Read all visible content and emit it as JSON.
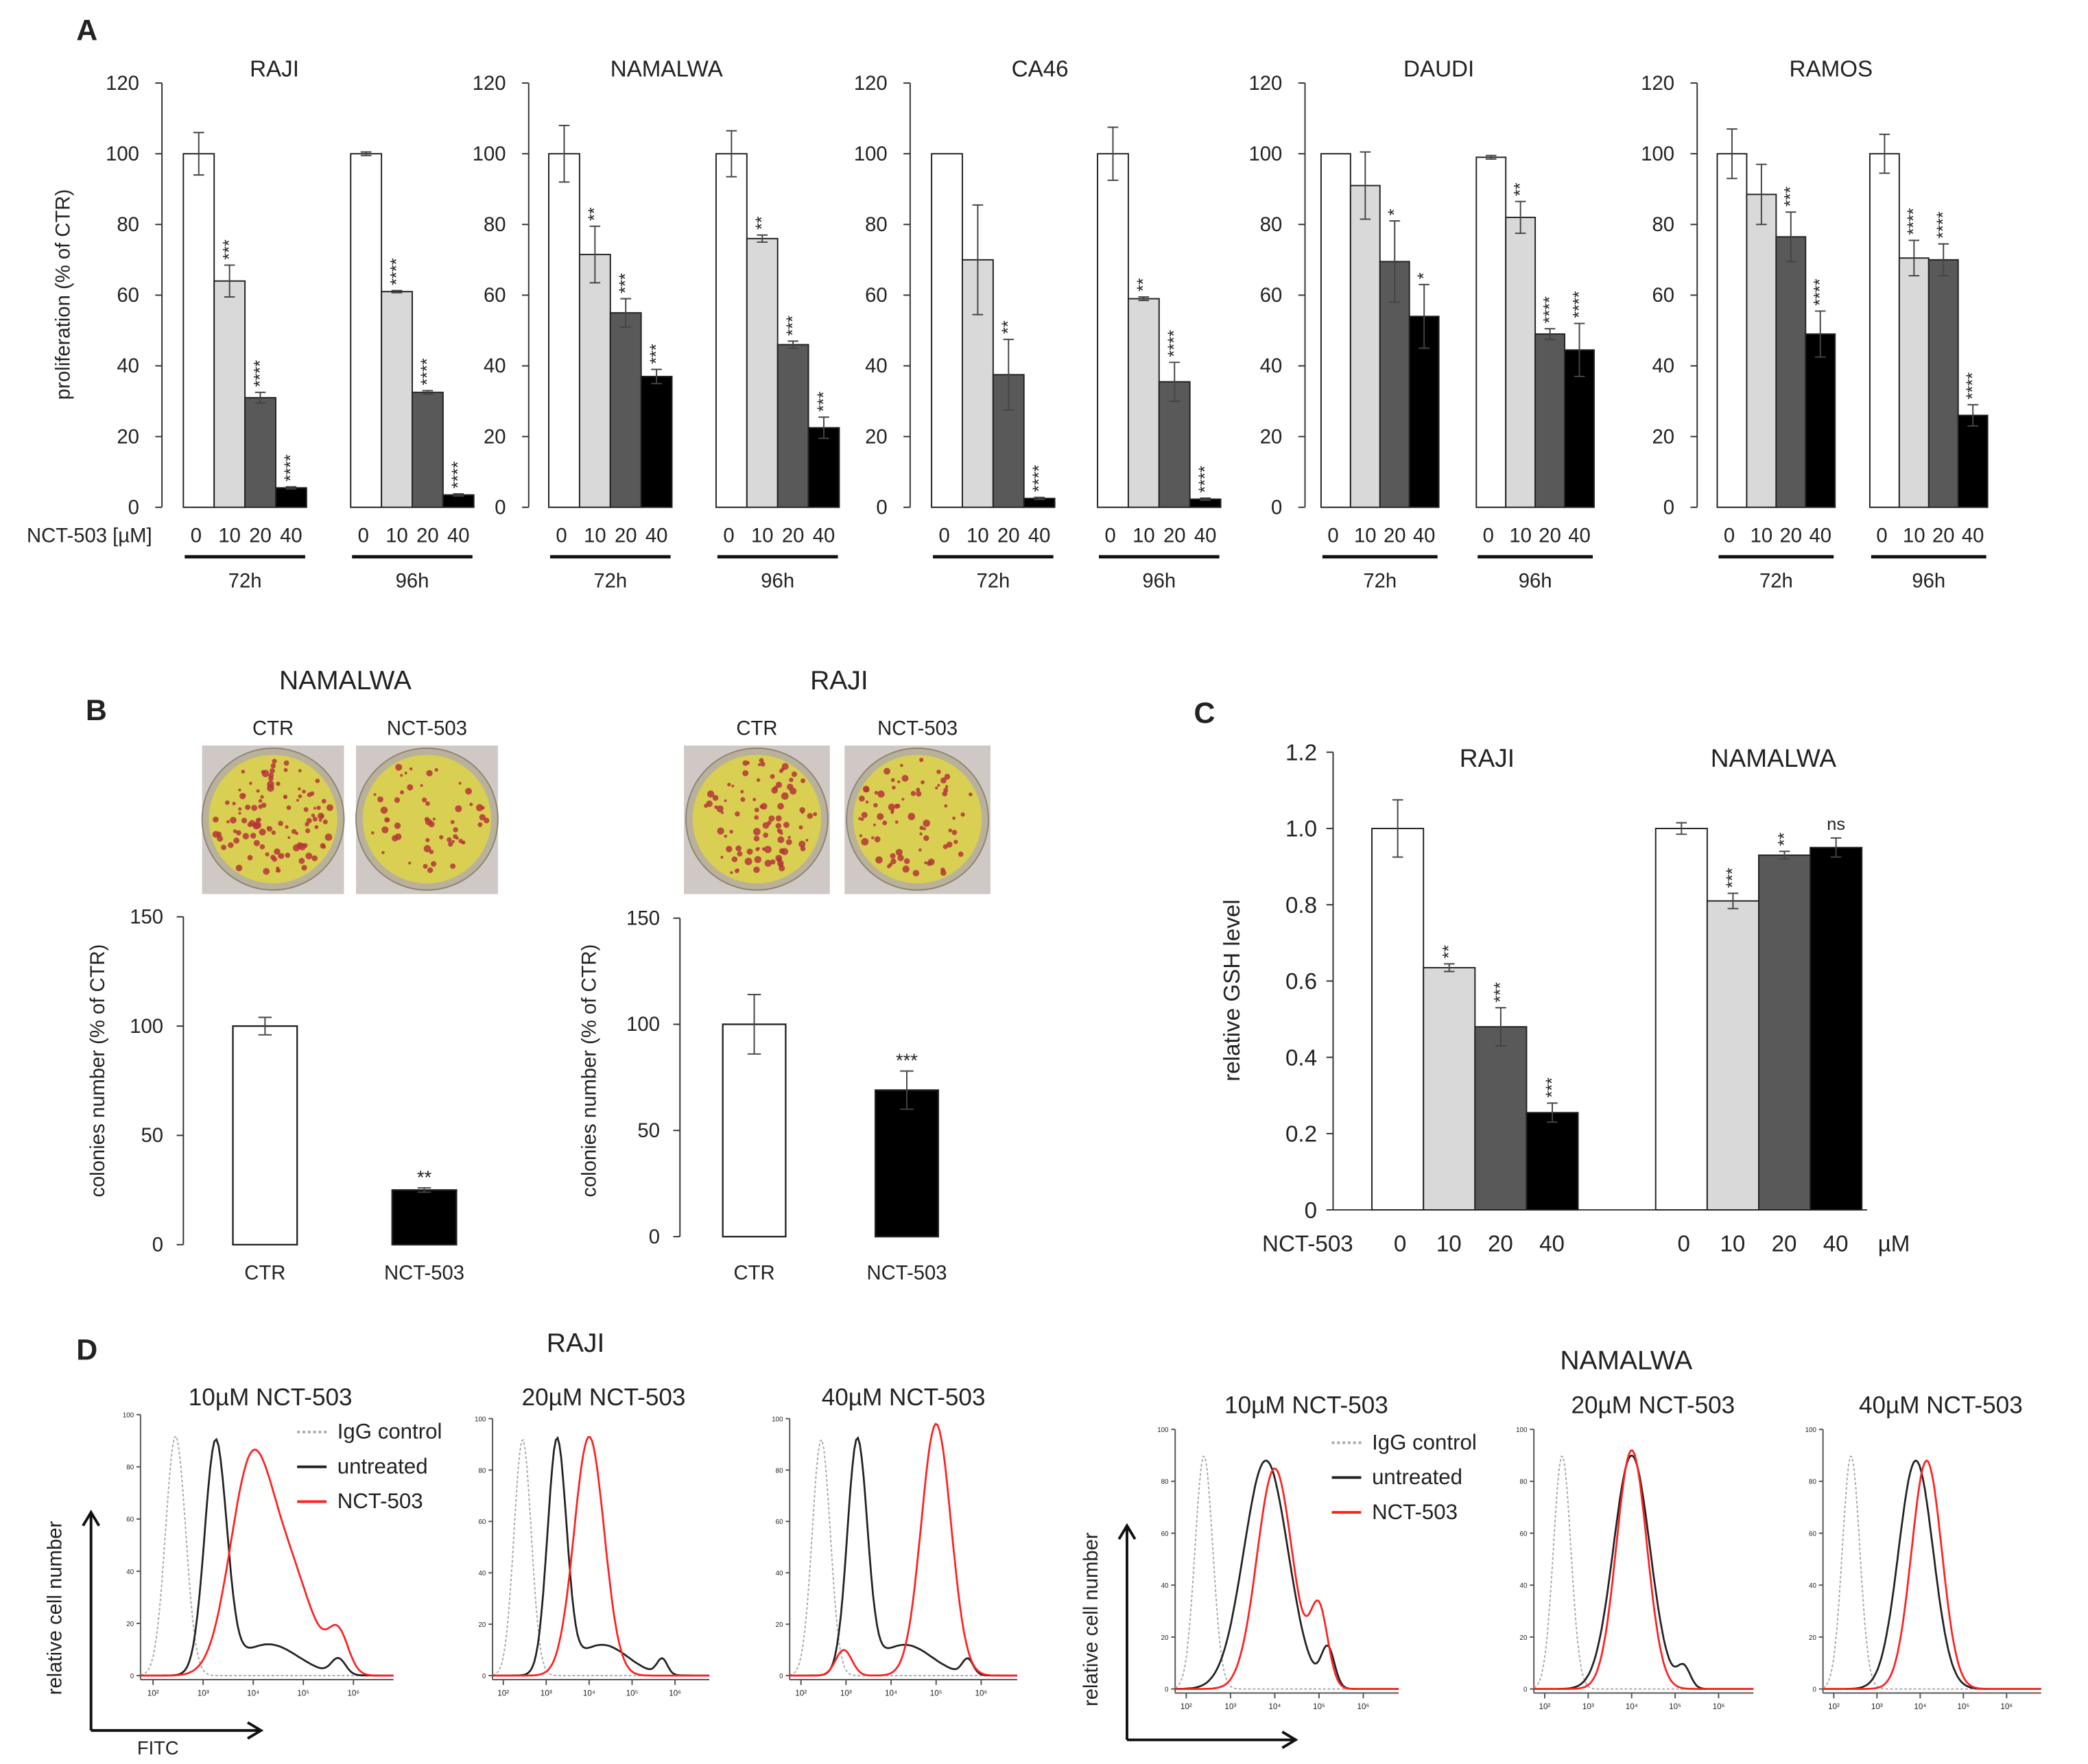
{
  "panel_labels": {
    "a": "A",
    "b": "B",
    "c": "C",
    "d": "D"
  },
  "chart_data": [
    {
      "panel": "A",
      "type": "bar",
      "ylabel": "proliferation (% of CTR)",
      "xlabel": "NCT-503 [µM]",
      "ylim": [
        0,
        120
      ],
      "yticks": [
        "0",
        "20",
        "40",
        "60",
        "80",
        "100",
        "120"
      ],
      "dose_labels": [
        "0",
        "10",
        "20",
        "40"
      ],
      "colors": [
        "#ffffff",
        "#d9d9d9",
        "#595959",
        "#000000"
      ],
      "cell_lines": [
        {
          "title": "RAJI",
          "groups": [
            {
              "time": "72h",
              "values": [
                100,
                64,
                31,
                5.5
              ],
              "errors": [
                6,
                4.5,
                1.5,
                0.3
              ],
              "sig": [
                "",
                "***",
                "****",
                "****"
              ]
            },
            {
              "time": "96h",
              "values": [
                100,
                61,
                32.5,
                3.5
              ],
              "errors": [
                0.5,
                0.3,
                0.5,
                0.3
              ],
              "sig": [
                "",
                "****",
                "****",
                "****"
              ]
            }
          ]
        },
        {
          "title": "NAMALWA",
          "groups": [
            {
              "time": "72h",
              "values": [
                100,
                71.5,
                55,
                37
              ],
              "errors": [
                8,
                8,
                4,
                2
              ],
              "sig": [
                "",
                "**",
                "***",
                "***"
              ]
            },
            {
              "time": "96h",
              "values": [
                100,
                76,
                46,
                22.5
              ],
              "errors": [
                6.5,
                1,
                1,
                3
              ],
              "sig": [
                "",
                "**",
                "***",
                "***"
              ]
            }
          ]
        },
        {
          "title": "CA46",
          "groups": [
            {
              "time": "72h",
              "values": [
                100,
                70,
                37.5,
                2.5
              ],
              "errors": [
                0,
                15.5,
                10,
                0.3
              ],
              "sig": [
                "",
                "",
                "**",
                "****"
              ]
            },
            {
              "time": "96h",
              "values": [
                100,
                59,
                35.5,
                2.3
              ],
              "errors": [
                7.5,
                0.5,
                5.5,
                0.3
              ],
              "sig": [
                "",
                "**",
                "****",
                "****"
              ]
            }
          ]
        },
        {
          "title": "DAUDI",
          "groups": [
            {
              "time": "72h",
              "values": [
                100,
                91,
                69.5,
                54
              ],
              "errors": [
                0,
                9.5,
                11.5,
                9
              ],
              "sig": [
                "",
                "",
                "*",
                "*"
              ]
            },
            {
              "time": "96h",
              "values": [
                99,
                82,
                49,
                44.5
              ],
              "errors": [
                0.5,
                4.5,
                1.5,
                7.5
              ],
              "sig": [
                "",
                "**",
                "****",
                "****"
              ]
            }
          ]
        },
        {
          "title": "RAMOS",
          "groups": [
            {
              "time": "72h",
              "values": [
                100,
                88.5,
                76.5,
                49
              ],
              "errors": [
                7,
                8.5,
                7,
                6.5
              ],
              "sig": [
                "",
                "",
                "***",
                "****"
              ]
            },
            {
              "time": "96h",
              "values": [
                100,
                70.5,
                70,
                26
              ],
              "errors": [
                5.5,
                5,
                4.5,
                3
              ],
              "sig": [
                "",
                "****",
                "****",
                "****"
              ]
            }
          ]
        }
      ]
    },
    {
      "panel": "B",
      "type": "bar",
      "ylabel": "colonies number (% of CTR)",
      "ylim": [
        0,
        150
      ],
      "yticks": [
        "0",
        "50",
        "100",
        "150"
      ],
      "colors": [
        "#ffffff",
        "#000000"
      ],
      "plots": [
        {
          "title": "NAMALWA",
          "photo_labels": [
            "CTR",
            "NCT-503"
          ],
          "categories": [
            "CTR",
            "NCT-503"
          ],
          "values": [
            100,
            25
          ],
          "errors": [
            4,
            1
          ],
          "sig": [
            "",
            "**"
          ]
        },
        {
          "title": "RAJI",
          "photo_labels": [
            "CTR",
            "NCT-503"
          ],
          "categories": [
            "CTR",
            "NCT-503"
          ],
          "values": [
            100,
            69
          ],
          "errors": [
            14,
            9
          ],
          "sig": [
            "",
            "***"
          ]
        }
      ]
    },
    {
      "panel": "C",
      "type": "bar",
      "ylabel": "relative GSH level",
      "xlabel": "NCT-503",
      "unit": "µM",
      "ylim": [
        0,
        1.2
      ],
      "yticks": [
        "0",
        "0.2",
        "0.4",
        "0.6",
        "0.8",
        "1.0",
        "1.2"
      ],
      "dose_labels": [
        "0",
        "10",
        "20",
        "40"
      ],
      "colors": [
        "#ffffff",
        "#d9d9d9",
        "#595959",
        "#000000"
      ],
      "groups": [
        {
          "title": "RAJI",
          "values": [
            1.0,
            0.635,
            0.48,
            0.255
          ],
          "errors": [
            0.075,
            0.01,
            0.05,
            0.025
          ],
          "sig": [
            "",
            "**",
            "***",
            "***"
          ]
        },
        {
          "title": "NAMALWA",
          "values": [
            1.0,
            0.81,
            0.93,
            0.95
          ],
          "errors": [
            0.015,
            0.02,
            0.01,
            0.025
          ],
          "sig": [
            "",
            "***",
            "**",
            "ns"
          ]
        }
      ]
    },
    {
      "panel": "D",
      "type": "line",
      "xscale": "log",
      "xlabel": "FITC",
      "ylabel": "relative cell number",
      "xlim_log10": [
        1.75,
        6.8
      ],
      "ylim": [
        0,
        100
      ],
      "xticks": [
        "10²",
        "10³",
        "10⁴",
        "10⁵",
        "10⁶"
      ],
      "yticks": [
        "0",
        "20",
        "40",
        "60",
        "80",
        "100"
      ],
      "legend": [
        {
          "label": "IgG control",
          "color": "#aaaaaa",
          "style": "dotted"
        },
        {
          "label": "untreated",
          "color": "#222222",
          "style": "solid"
        },
        {
          "label": "NCT-503",
          "color": "#ff2020",
          "style": "solid"
        }
      ],
      "note": "curves given as gaussian components in log10(FITC): [center, width, height %]",
      "groups": [
        {
          "title": "RAJI",
          "plots": [
            {
              "title": "10µM NCT-503",
              "igg": [
                [
                  2.45,
                  0.2,
                  92
                ]
              ],
              "untreated": [
                [
                  3.25,
                  0.22,
                  88
                ],
                [
                  4.3,
                  0.6,
                  12
                ],
                [
                  5.7,
                  0.14,
                  6
                ]
              ],
              "nct": [
                [
                  3.95,
                  0.42,
                  78
                ],
                [
                  4.75,
                  0.45,
                  36
                ],
                [
                  5.7,
                  0.2,
                  15
                ]
              ]
            },
            {
              "title": "20µM NCT-503",
              "igg": [
                [
                  2.45,
                  0.2,
                  92
                ]
              ],
              "untreated": [
                [
                  3.25,
                  0.22,
                  90
                ],
                [
                  4.3,
                  0.6,
                  12
                ],
                [
                  5.7,
                  0.12,
                  6
                ]
              ],
              "nct": [
                [
                  4.0,
                  0.35,
                  93
                ]
              ]
            },
            {
              "title": "40µM NCT-503",
              "igg": [
                [
                  2.45,
                  0.2,
                  92
                ]
              ],
              "untreated": [
                [
                  3.25,
                  0.22,
                  90
                ],
                [
                  4.3,
                  0.6,
                  12
                ],
                [
                  5.7,
                  0.12,
                  6
                ]
              ],
              "nct": [
                [
                  5.0,
                  0.33,
                  98
                ],
                [
                  2.95,
                  0.18,
                  10
                ]
              ]
            }
          ]
        },
        {
          "title": "NAMALWA",
          "plots": [
            {
              "title": "10µM NCT-503",
              "igg": [
                [
                  2.4,
                  0.2,
                  90
                ]
              ],
              "untreated": [
                [
                  3.8,
                  0.5,
                  88
                ],
                [
                  5.2,
                  0.15,
                  15
                ]
              ],
              "nct": [
                [
                  4.0,
                  0.4,
                  85
                ],
                [
                  5.0,
                  0.2,
                  30
                ]
              ]
            },
            {
              "title": "20µM NCT-503",
              "igg": [
                [
                  2.4,
                  0.2,
                  90
                ]
              ],
              "untreated": [
                [
                  4.0,
                  0.42,
                  90
                ],
                [
                  5.2,
                  0.15,
                  8
                ]
              ],
              "nct": [
                [
                  4.0,
                  0.35,
                  92
                ]
              ]
            },
            {
              "title": "40µM NCT-503",
              "igg": [
                [
                  2.4,
                  0.2,
                  90
                ]
              ],
              "untreated": [
                [
                  3.9,
                  0.4,
                  88
                ]
              ],
              "nct": [
                [
                  4.15,
                  0.35,
                  88
                ]
              ]
            }
          ]
        }
      ]
    }
  ]
}
